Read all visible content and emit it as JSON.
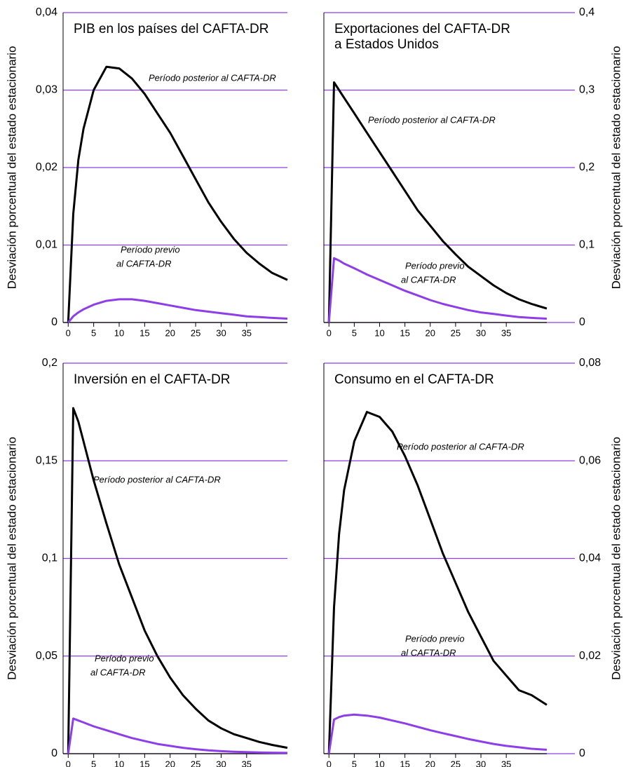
{
  "chart_data": [
    {
      "type": "line",
      "title": [
        "PIB en los países del CAFTA-DR"
      ],
      "ylabel": "Desviación porcentual del estado estacionario",
      "x": [
        0,
        1,
        2,
        3,
        5,
        7.5,
        10,
        12.5,
        15,
        17.5,
        20,
        22.5,
        25,
        27.5,
        30,
        32.5,
        35,
        37.5,
        40,
        43
      ],
      "xlim": [
        -1,
        43
      ],
      "xticks": [
        0,
        5,
        10,
        15,
        20,
        25,
        30,
        35
      ],
      "ylim": [
        0,
        0.04
      ],
      "yticks": [
        0,
        {
          "value": 0.01,
          "label": "0,01"
        },
        {
          "value": 0.02,
          "label": "0,02"
        },
        {
          "value": 0.03,
          "label": "0,03"
        },
        {
          "value": 0.04,
          "label": "0,04"
        }
      ],
      "grid": true,
      "series": [
        {
          "color": "#000000",
          "values": [
            0,
            0.014,
            0.021,
            0.025,
            0.03,
            0.033,
            0.0328,
            0.0315,
            0.0295,
            0.027,
            0.0245,
            0.0215,
            0.0185,
            0.0155,
            0.013,
            0.0108,
            0.009,
            0.0076,
            0.0064,
            0.0055
          ]
        },
        {
          "color": "#8e3ee8",
          "values": [
            0,
            0.0008,
            0.0013,
            0.0017,
            0.0023,
            0.0028,
            0.003,
            0.003,
            0.0028,
            0.0025,
            0.0022,
            0.0019,
            0.0016,
            0.0014,
            0.0012,
            0.001,
            0.0008,
            0.0007,
            0.0006,
            0.0005
          ]
        }
      ],
      "annotations": [
        {
          "lines": [
            "Período posterior al CAFTA-DR"
          ]
        },
        {
          "lines": [
            "Período previo",
            "al CAFTA-DR"
          ]
        }
      ]
    },
    {
      "type": "line",
      "title": [
        "Exportaciones del CAFTA-DR",
        "a Estados Unidos"
      ],
      "ylabel": "Desviación porcentual del estado estacionario",
      "x": [
        0,
        1,
        2,
        3,
        5,
        7.5,
        10,
        12.5,
        15,
        17.5,
        20,
        22.5,
        25,
        27.5,
        30,
        32.5,
        35,
        37.5,
        40,
        43
      ],
      "xlim": [
        -1,
        43
      ],
      "xticks": [
        0,
        5,
        10,
        15,
        20,
        25,
        30,
        35
      ],
      "ylim": [
        0,
        0.4
      ],
      "yticks": [
        0,
        {
          "value": 0.1,
          "label": "0,1"
        },
        {
          "value": 0.2,
          "label": "0,2"
        },
        {
          "value": 0.3,
          "label": "0,3"
        },
        {
          "value": 0.4,
          "label": "0,4"
        }
      ],
      "grid": true,
      "series": [
        {
          "color": "#000000",
          "values": [
            0,
            0.31,
            0.3,
            0.29,
            0.27,
            0.245,
            0.22,
            0.195,
            0.17,
            0.145,
            0.125,
            0.105,
            0.088,
            0.072,
            0.06,
            0.048,
            0.038,
            0.03,
            0.024,
            0.018
          ]
        },
        {
          "color": "#8e3ee8",
          "values": [
            0,
            0.083,
            0.08,
            0.076,
            0.07,
            0.062,
            0.055,
            0.048,
            0.041,
            0.035,
            0.029,
            0.024,
            0.02,
            0.016,
            0.013,
            0.011,
            0.009,
            0.007,
            0.006,
            0.005
          ]
        }
      ],
      "annotations": [
        {
          "lines": [
            "Período posterior al CAFTA-DR"
          ]
        },
        {
          "lines": [
            "Período previo",
            "al CAFTA-DR"
          ]
        }
      ]
    },
    {
      "type": "line",
      "title": [
        "Inversión en el CAFTA-DR"
      ],
      "ylabel": "Desviación porcentual del estado estacionario",
      "x": [
        0,
        1,
        2,
        3,
        5,
        7.5,
        10,
        12.5,
        15,
        17.5,
        20,
        22.5,
        25,
        27.5,
        30,
        32.5,
        35,
        37.5,
        40,
        43
      ],
      "xlim": [
        -1,
        43
      ],
      "xticks": [
        0,
        5,
        10,
        15,
        20,
        25,
        30,
        35
      ],
      "ylim": [
        0,
        0.2
      ],
      "yticks": [
        0,
        {
          "value": 0.05,
          "label": "0,05"
        },
        {
          "value": 0.1,
          "label": "0,1"
        },
        {
          "value": 0.15,
          "label": "0,15"
        },
        {
          "value": 0.2,
          "label": "0,2"
        }
      ],
      "grid": true,
      "series": [
        {
          "color": "#000000",
          "values": [
            0,
            0.177,
            0.17,
            0.16,
            0.14,
            0.118,
            0.097,
            0.08,
            0.063,
            0.05,
            0.039,
            0.03,
            0.023,
            0.017,
            0.013,
            0.01,
            0.008,
            0.006,
            0.0045,
            0.003
          ]
        },
        {
          "color": "#8e3ee8",
          "values": [
            0,
            0.018,
            0.017,
            0.016,
            0.014,
            0.012,
            0.01,
            0.008,
            0.0065,
            0.005,
            0.004,
            0.003,
            0.0023,
            0.0017,
            0.0013,
            0.001,
            0.0008,
            0.0006,
            0.0005,
            0.0004
          ]
        }
      ],
      "annotations": [
        {
          "lines": [
            "Período posterior al CAFTA-DR"
          ]
        },
        {
          "lines": [
            "Período previo",
            "al CAFTA-DR"
          ]
        }
      ]
    },
    {
      "type": "line",
      "title": [
        "Consumo en el CAFTA-DR"
      ],
      "ylabel": "Desviación porcentual del estado estacionario",
      "x": [
        0,
        1,
        2,
        3,
        5,
        7.5,
        10,
        12.5,
        15,
        17.5,
        20,
        22.5,
        25,
        27.5,
        30,
        32.5,
        35,
        37.5,
        40,
        43
      ],
      "xlim": [
        -1,
        43
      ],
      "xticks": [
        0,
        5,
        10,
        15,
        20,
        25,
        30,
        35
      ],
      "ylim": [
        0,
        0.08
      ],
      "yticks": [
        0,
        {
          "value": 0.02,
          "label": "0,02"
        },
        {
          "value": 0.04,
          "label": "0,04"
        },
        {
          "value": 0.06,
          "label": "0,06"
        },
        {
          "value": 0.08,
          "label": "0,08"
        }
      ],
      "grid": true,
      "series": [
        {
          "color": "#000000",
          "values": [
            0,
            0.03,
            0.045,
            0.054,
            0.064,
            0.07,
            0.069,
            0.066,
            0.061,
            0.055,
            0.048,
            0.041,
            0.035,
            0.029,
            0.024,
            0.019,
            0.016,
            0.013,
            0.012,
            0.01
          ]
        },
        {
          "color": "#8e3ee8",
          "values": [
            0,
            0.007,
            0.0075,
            0.0078,
            0.008,
            0.0078,
            0.0074,
            0.0068,
            0.0062,
            0.0055,
            0.0048,
            0.0042,
            0.0036,
            0.003,
            0.0025,
            0.002,
            0.0016,
            0.0013,
            0.001,
            0.0008
          ]
        }
      ],
      "annotations": [
        {
          "lines": [
            "Período posterior al CAFTA-DR"
          ]
        },
        {
          "lines": [
            "Período previo",
            "al CAFTA-DR"
          ]
        }
      ]
    }
  ]
}
